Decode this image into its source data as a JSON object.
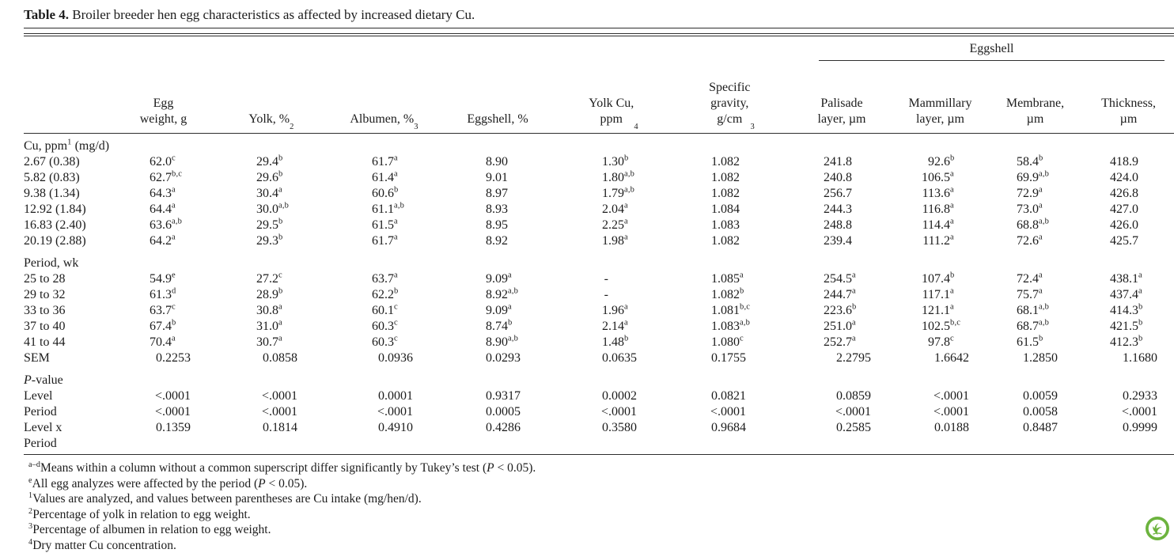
{
  "page": {
    "background": "#ffffff",
    "text_color": "#1c1c1c",
    "rule_color": "#2e2e2e",
    "logo_green": "#6cb33e"
  },
  "caption": {
    "label": "Table 4.",
    "text": "Broiler breeder hen egg characteristics as affected by increased dietary Cu."
  },
  "table": {
    "spanner": {
      "label": "Eggshell",
      "covers_columns": [
        "Palisade layer, µm",
        "Mammillary layer, µm",
        "Membrane, µm",
        "Thickness, µm"
      ]
    },
    "columns": [
      "Egg\nweight, g",
      "Yolk, %^{2}",
      "Albumen, %^{3}",
      "Eggshell, %",
      "Yolk Cu,\nppm^{4}",
      "Specific\ngravity,\ng/cm^{3}",
      "Palisade\nlayer, µm",
      "Mammillary\nlayer, µm",
      "Membrane,\nµm",
      "Thickness,\nµm"
    ],
    "sections": [
      {
        "label": "Cu, ppm^{1} (mg/d)",
        "rows": [
          {
            "label": "2.67 (0.38)",
            "values": [
              "62.0^{c}",
              "29.4^{b}",
              "61.7^{a}",
              "8.90",
              "1.30^{b}",
              "1.082",
              "241.8",
              "92.6^{b}",
              "58.4^{b}",
              "418.9"
            ]
          },
          {
            "label": "5.82 (0.83)",
            "values": [
              "62.7^{b,c}",
              "29.6^{b}",
              "61.4^{a}",
              "9.01",
              "1.80^{a,b}",
              "1.082",
              "240.8",
              "106.5^{a}",
              "69.9^{a,b}",
              "424.0"
            ]
          },
          {
            "label": "9.38 (1.34)",
            "values": [
              "64.3^{a}",
              "30.4^{a}",
              "60.6^{b}",
              "8.97",
              "1.79^{a,b}",
              "1.082",
              "256.7",
              "113.6^{a}",
              "72.9^{a}",
              "426.8"
            ]
          },
          {
            "label": "12.92 (1.84)",
            "values": [
              "64.4^{a}",
              "30.0^{a,b}",
              "61.1^{a,b}",
              "8.93",
              "2.04^{a}",
              "1.084",
              "244.3",
              "116.8^{a}",
              "73.0^{a}",
              "427.0"
            ]
          },
          {
            "label": "16.83 (2.40)",
            "values": [
              "63.6^{a,b}",
              "29.5^{b}",
              "61.5^{a}",
              "8.95",
              "2.25^{a}",
              "1.083",
              "248.8",
              "114.4^{a}",
              "68.8^{a,b}",
              "426.0"
            ]
          },
          {
            "label": "20.19 (2.88)",
            "values": [
              "64.2^{a}",
              "29.3^{b}",
              "61.7^{a}",
              "8.92",
              "1.98^{a}",
              "1.082",
              "239.4",
              "111.2^{a}",
              "72.6^{a}",
              "425.7"
            ]
          }
        ]
      },
      {
        "label": "Period, wk",
        "rows": [
          {
            "label": "25 to 28",
            "values": [
              "54.9^{e}",
              "27.2^{c}",
              "63.7^{a}",
              "9.09^{a}",
              "-",
              "1.085^{a}",
              "254.5^{a}",
              "107.4^{b}",
              "72.4^{a}",
              "438.1^{a}"
            ]
          },
          {
            "label": "29 to 32",
            "values": [
              "61.3^{d}",
              "28.9^{b}",
              "62.2^{b}",
              "8.92^{a,b}",
              "-",
              "1.082^{b}",
              "244.7^{a}",
              "117.1^{a}",
              "75.7^{a}",
              "437.4^{a}"
            ]
          },
          {
            "label": "33 to 36",
            "values": [
              "63.7^{c}",
              "30.8^{a}",
              "60.1^{c}",
              "9.09^{a}",
              "1.96^{a}",
              "1.081^{b,c}",
              "223.6^{b}",
              "121.1^{a}",
              "68.1^{a,b}",
              "414.3^{b}"
            ]
          },
          {
            "label": "37 to 40",
            "values": [
              "67.4^{b}",
              "31.0^{a}",
              "60.3^{c}",
              "8.74^{b}",
              "2.14^{a}",
              "1.083^{a,b}",
              "251.0^{a}",
              "102.5^{b,c}",
              "68.7^{a,b}",
              "421.5^{b}"
            ]
          },
          {
            "label": "41 to 44",
            "values": [
              "70.4^{a}",
              "30.7^{a}",
              "60.3^{c}",
              "8.90^{a,b}",
              "1.48^{b}",
              "1.080^{c}",
              "252.7^{a}",
              "97.8^{c}",
              "61.5^{b}",
              "412.3^{b}"
            ]
          },
          {
            "label": "SEM",
            "values": [
              "0.2253",
              "0.0858",
              "0.0936",
              "0.0293",
              "0.0635",
              "0.1755",
              "2.2795",
              "1.6642",
              "1.2850",
              "1.1680"
            ]
          }
        ]
      },
      {
        "label": "[[P]]-value",
        "rows": [
          {
            "label": "Level",
            "values": [
              "<.0001",
              "<.0001",
              "0.0001",
              "0.9317",
              "0.0002",
              "0.0821",
              "0.0859",
              "<.0001",
              "0.0059",
              "0.2933"
            ]
          },
          {
            "label": "Period",
            "values": [
              "<.0001",
              "<.0001",
              "<.0001",
              "0.0005",
              "<.0001",
              "<.0001",
              "<.0001",
              "<.0001",
              "0.0058",
              "<.0001"
            ]
          },
          {
            "label": "Level x\nPeriod",
            "values": [
              "0.1359",
              "0.1814",
              "0.4910",
              "0.4286",
              "0.3580",
              "0.9684",
              "0.2585",
              "0.0188",
              "0.8487",
              "0.9999"
            ]
          }
        ]
      }
    ]
  },
  "footnotes": [
    {
      "sup": "a–d",
      "text": "Means within a column without a common superscript differ significantly by Tukey’s test ([[P]] < 0.05)."
    },
    {
      "sup": "e",
      "text": "All egg analyzes were affected by the period ([[P]] < 0.05)."
    },
    {
      "sup": "1",
      "text": "Values are analyzed, and values between parentheses are Cu intake (mg/hen/d)."
    },
    {
      "sup": "2",
      "text": "Percentage of yolk in relation to egg weight."
    },
    {
      "sup": "3",
      "text": "Percentage of albumen in relation to egg weight."
    },
    {
      "sup": "4",
      "text": "Dry matter Cu concentration."
    }
  ],
  "logo": {
    "name": "eco-leaf-badge"
  }
}
